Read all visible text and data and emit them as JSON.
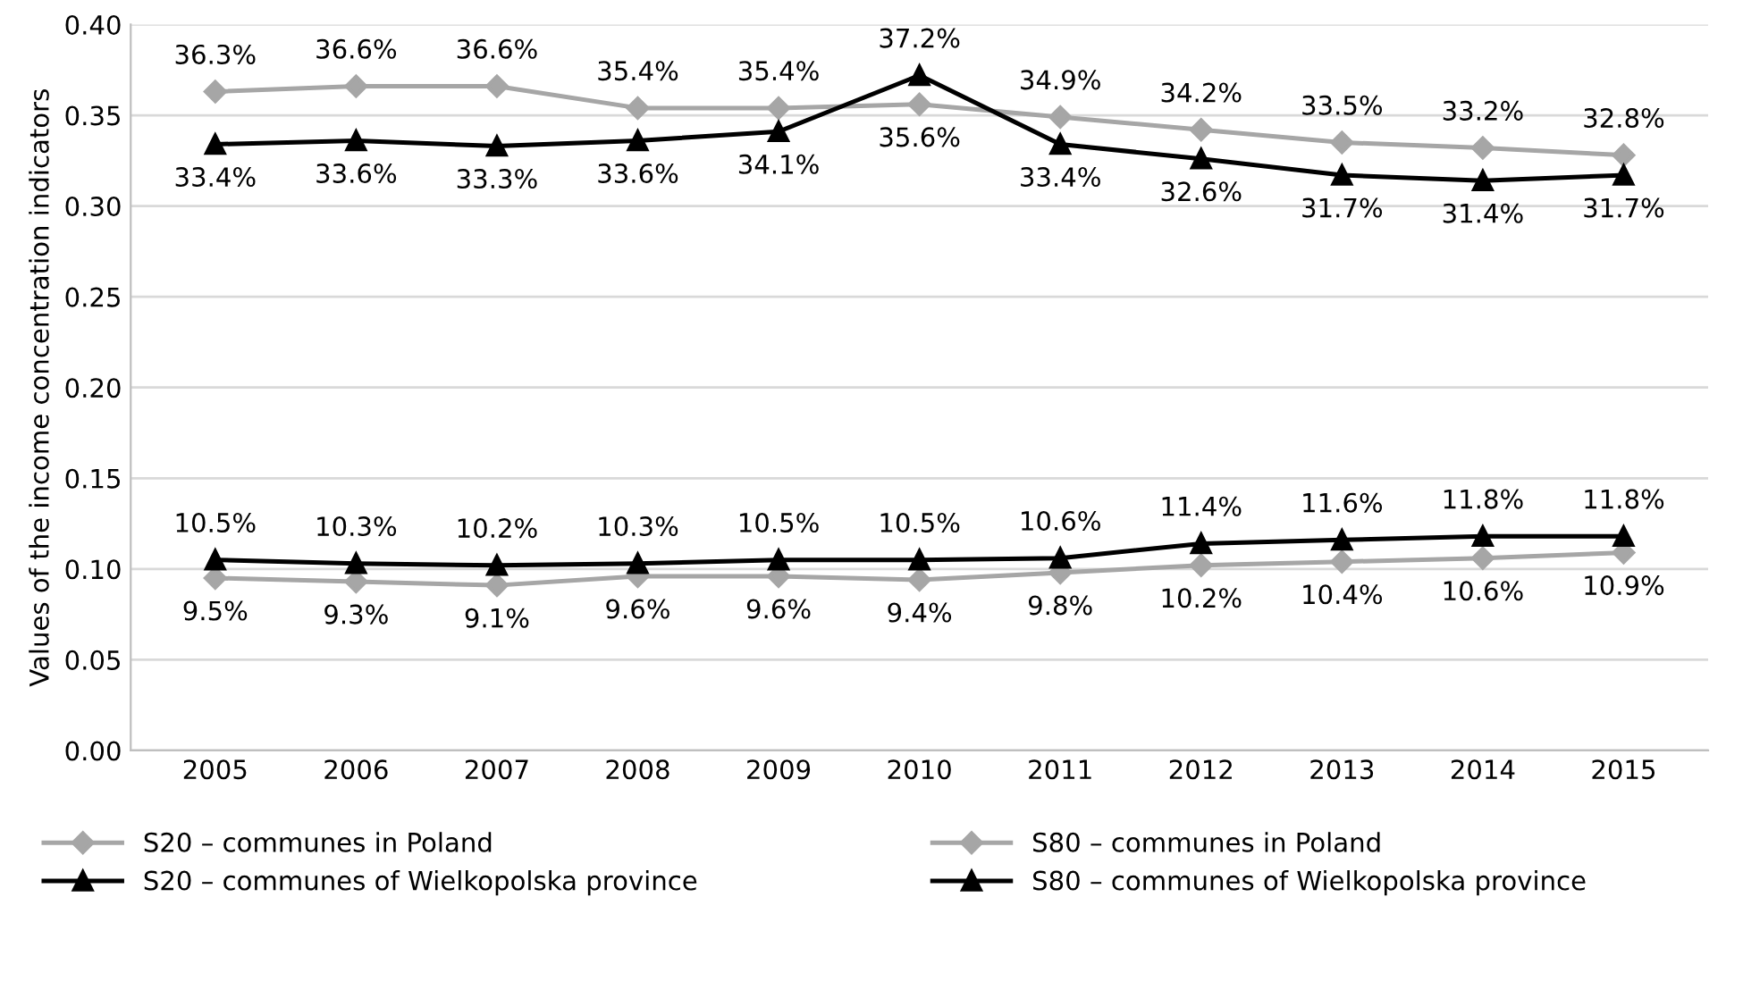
{
  "chart_data": {
    "type": "line",
    "ylabel": "Values of the income concentration indicators",
    "categories": [
      "2005",
      "2006",
      "2007",
      "2008",
      "2009",
      "2010",
      "2011",
      "2012",
      "2013",
      "2014",
      "2015"
    ],
    "series": [
      {
        "name": "S20 – communes in Poland",
        "color": "#a6a6a6",
        "marker": "diamond",
        "values": [
          0.095,
          0.093,
          0.091,
          0.096,
          0.096,
          0.094,
          0.098,
          0.102,
          0.104,
          0.106,
          0.109
        ],
        "value_labels": [
          "9.5%",
          "9.3%",
          "9.1%",
          "9.6%",
          "9.6%",
          "9.4%",
          "9.8%",
          "10.2%",
          "10.4%",
          "10.6%",
          "10.9%"
        ]
      },
      {
        "name": "S80 – communes in Poland",
        "color": "#a6a6a6",
        "marker": "diamond",
        "values": [
          0.363,
          0.366,
          0.366,
          0.354,
          0.354,
          0.356,
          0.349,
          0.342,
          0.335,
          0.332,
          0.328
        ],
        "value_labels": [
          "36.3%",
          "36.6%",
          "36.6%",
          "35.4%",
          "35.4%",
          "35.6%",
          "34.9%",
          "34.2%",
          "33.5%",
          "33.2%",
          "32.8%"
        ]
      },
      {
        "name": "S20 – communes of Wielkopolska province",
        "color": "#000000",
        "marker": "triangle",
        "values": [
          0.105,
          0.103,
          0.102,
          0.103,
          0.105,
          0.105,
          0.106,
          0.114,
          0.116,
          0.118,
          0.118
        ],
        "value_labels": [
          "10.5%",
          "10.3%",
          "10.2%",
          "10.3%",
          "10.5%",
          "10.5%",
          "10.6%",
          "11.4%",
          "11.6%",
          "11.8%",
          "11.8%"
        ]
      },
      {
        "name": "S80 – communes of Wielkopolska province",
        "color": "#000000",
        "marker": "triangle",
        "values": [
          0.334,
          0.336,
          0.333,
          0.336,
          0.341,
          0.372,
          0.334,
          0.326,
          0.317,
          0.314,
          0.317
        ],
        "value_labels": [
          "33.4%",
          "33.6%",
          "33.3%",
          "33.6%",
          "34.1%",
          "37.2%",
          "33.4%",
          "32.6%",
          "31.7%",
          "31.4%",
          "31.7%"
        ]
      }
    ],
    "ylim": [
      0,
      0.4
    ],
    "yticks": [
      {
        "value": 0,
        "label": "0.00"
      },
      {
        "value": 0.05,
        "label": "0.05"
      },
      {
        "value": 0.1,
        "label": "0.10"
      },
      {
        "value": 0.15,
        "label": "0.15"
      },
      {
        "value": 0.2,
        "label": "0.20"
      },
      {
        "value": 0.25,
        "label": "0.25"
      },
      {
        "value": 0.3,
        "label": "0.30"
      },
      {
        "value": 0.35,
        "label": "0.35"
      },
      {
        "value": 0.4,
        "label": "0.40"
      }
    ],
    "grid": "y",
    "legend": "bottom",
    "line_style": "solid"
  }
}
